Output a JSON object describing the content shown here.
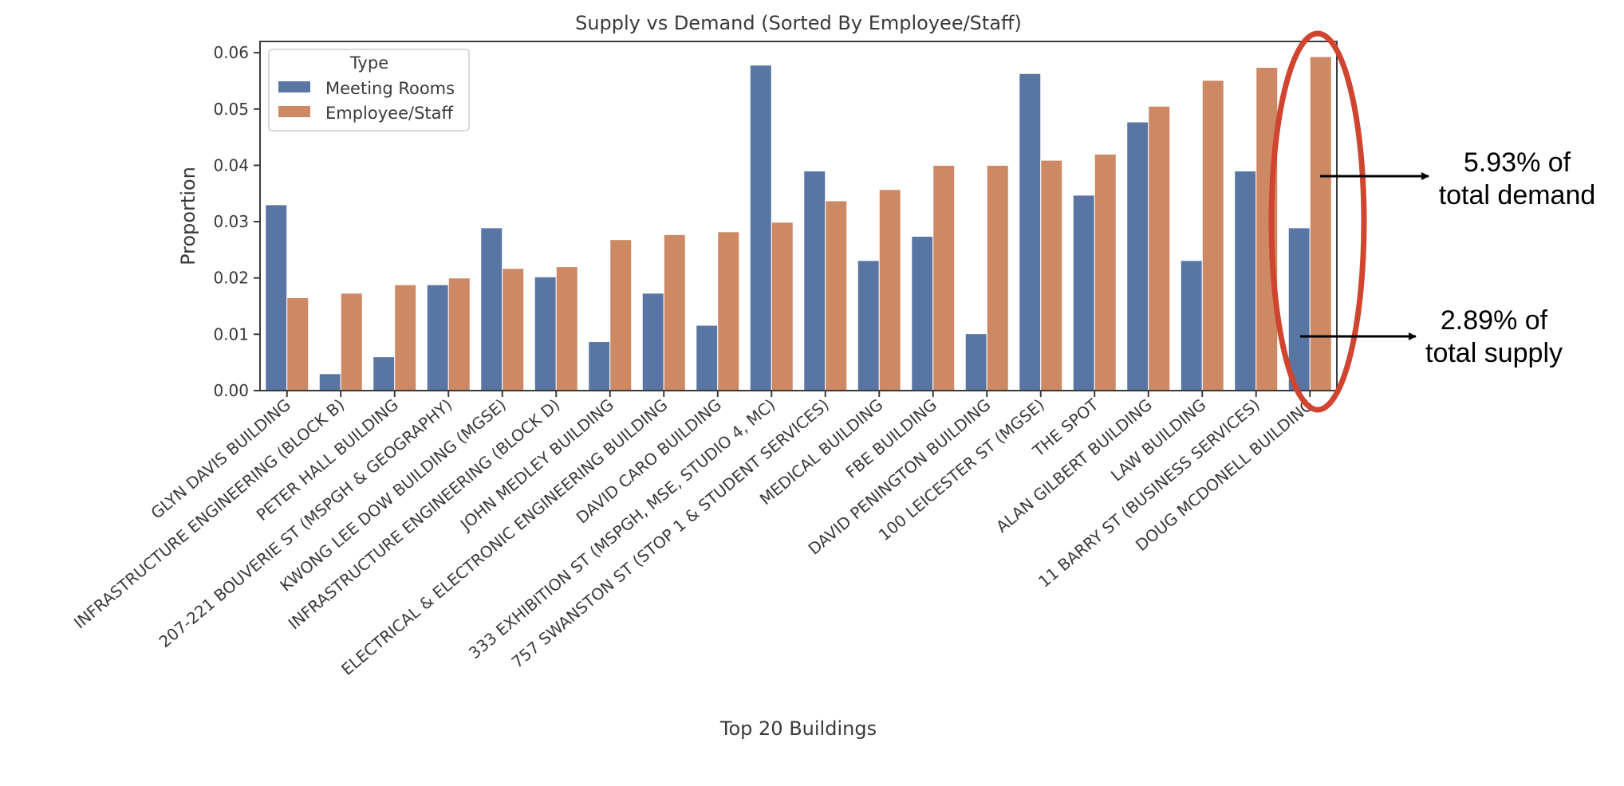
{
  "chart_data": {
    "type": "bar",
    "title": "Supply vs Demand (Sorted By Employee/Staff)",
    "xlabel": "Top 20 Buildings",
    "ylabel": "Proportion",
    "ylim": [
      0,
      0.062
    ],
    "yticks": [
      "0.00",
      "0.01",
      "0.02",
      "0.03",
      "0.04",
      "0.05",
      "0.06"
    ],
    "grid": false,
    "legend": {
      "title": "Type",
      "placement": "top-left",
      "entries": [
        "Meeting Rooms",
        "Employee/Staff"
      ]
    },
    "categories": [
      "GLYN DAVIS BUILDING",
      "INFRASTRUCTURE ENGINEERING (BLOCK B)",
      "PETER HALL BUILDING",
      "207-221 BOUVERIE ST (MSPGH & GEOGRAPHY)",
      "KWONG LEE DOW BUILDING (MGSE)",
      "INFRASTRUCTURE ENGINEERING (BLOCK D)",
      "JOHN MEDLEY BUILDING",
      "ELECTRICAL & ELECTRONIC ENGINEERING BUILDING",
      "DAVID CARO BUILDING",
      "333 EXHIBITION ST (MSPGH, MSE, STUDIO 4, MC)",
      "757 SWANSTON ST (STOP 1 & STUDENT SERVICES)",
      "MEDICAL BUILDING",
      "FBE BUILDING",
      "DAVID PENINGTON BUILDING",
      "100 LEICESTER ST (MGSE)",
      "THE SPOT",
      "ALAN GILBERT BUILDING",
      "LAW BUILDING",
      "11 BARRY ST (BUSINESS SERVICES)",
      "DOUG MCDONELL BUILDING"
    ],
    "series": [
      {
        "name": "Meeting Rooms",
        "color": "#5875a4",
        "values": [
          0.033,
          0.003,
          0.006,
          0.0188,
          0.0289,
          0.0202,
          0.0087,
          0.0173,
          0.0116,
          0.0578,
          0.039,
          0.0231,
          0.0274,
          0.0101,
          0.0563,
          0.0347,
          0.0477,
          0.0231,
          0.039,
          0.0289
        ]
      },
      {
        "name": "Employee/Staff",
        "color": "#cc8963",
        "values": [
          0.0165,
          0.0173,
          0.0188,
          0.02,
          0.0217,
          0.022,
          0.0268,
          0.0277,
          0.0282,
          0.0299,
          0.0337,
          0.0357,
          0.04,
          0.04,
          0.0409,
          0.042,
          0.0505,
          0.0551,
          0.0574,
          0.0593
        ]
      }
    ],
    "annotations": [
      {
        "text_line1": "5.93% of",
        "text_line2": "total demand"
      },
      {
        "text_line1": "2.89% of",
        "text_line2": "total supply"
      }
    ],
    "highlight_color": "#d0452f"
  }
}
